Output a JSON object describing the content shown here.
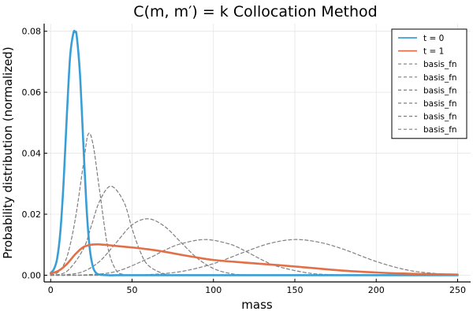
{
  "chart_data": {
    "type": "line",
    "title": "C(m, m′) = k Collocation Method",
    "xlabel": "mass",
    "ylabel": "Probability distribution (normalized)",
    "xlim": [
      -4,
      258
    ],
    "ylim": [
      -0.0022,
      0.0825
    ],
    "x_ticks": [
      0,
      50,
      100,
      150,
      200,
      250
    ],
    "y_ticks": [
      0.0,
      0.02,
      0.04,
      0.06,
      0.08
    ],
    "y_tick_labels": [
      "0.00",
      "0.02",
      "0.04",
      "0.06",
      "0.08"
    ],
    "grid": true,
    "legend_position": "top-right",
    "series": [
      {
        "name": "t = 0",
        "color": "#389fd6",
        "style": "solid",
        "x": [
          0,
          2,
          4,
          6,
          8,
          10,
          12,
          14,
          15,
          16,
          18,
          20,
          22,
          24,
          26,
          28,
          30,
          35,
          40,
          50,
          60,
          100,
          150,
          200,
          250
        ],
        "values": [
          0.0007,
          0.002,
          0.0055,
          0.0145,
          0.031,
          0.053,
          0.072,
          0.0795,
          0.0797,
          0.0785,
          0.066,
          0.044,
          0.0225,
          0.0088,
          0.0027,
          0.0007,
          0.0002,
          0.0,
          0.0,
          0.0,
          0.0,
          0.0,
          0.0,
          0.0,
          0.0
        ]
      },
      {
        "name": "t = 1",
        "color": "#e26f46",
        "style": "solid",
        "x": [
          0,
          5,
          10,
          15,
          20,
          25,
          30,
          35,
          40,
          50,
          60,
          70,
          80,
          90,
          100,
          120,
          140,
          160,
          180,
          200,
          220,
          240,
          250
        ],
        "values": [
          0.0005,
          0.0015,
          0.0037,
          0.0068,
          0.0092,
          0.01,
          0.0101,
          0.0099,
          0.0096,
          0.0091,
          0.0085,
          0.0077,
          0.0067,
          0.0058,
          0.005,
          0.0041,
          0.0033,
          0.0024,
          0.0015,
          0.0009,
          0.0005,
          0.0003,
          0.0002
        ]
      },
      {
        "name": "basis_fn",
        "color": "#7f7f7f",
        "style": "dashed",
        "x": [
          0,
          5,
          10,
          15,
          20,
          23,
          26,
          30,
          35,
          40,
          45,
          50,
          60,
          80
        ],
        "values": [
          0.0,
          0.0012,
          0.006,
          0.018,
          0.036,
          0.0462,
          0.043,
          0.028,
          0.0095,
          0.0018,
          0.0002,
          0.0,
          0.0,
          0.0
        ]
      },
      {
        "name": "basis_fn",
        "color": "#7f7f7f",
        "style": "dashed",
        "x": [
          0,
          10,
          20,
          25,
          30,
          37,
          45,
          50,
          55,
          60,
          70,
          80,
          100
        ],
        "values": [
          0.0,
          0.0013,
          0.0085,
          0.0162,
          0.0242,
          0.0292,
          0.024,
          0.0153,
          0.0078,
          0.0032,
          0.0004,
          0.0,
          0.0
        ]
      },
      {
        "name": "basis_fn",
        "color": "#7f7f7f",
        "style": "dashed",
        "x": [
          0,
          10,
          20,
          30,
          40,
          50,
          60,
          70,
          80,
          90,
          100,
          110,
          120,
          140
        ],
        "values": [
          0.0,
          0.0002,
          0.0012,
          0.0045,
          0.0105,
          0.0165,
          0.0185,
          0.016,
          0.0108,
          0.0056,
          0.0022,
          0.0006,
          0.0001,
          0.0
        ]
      },
      {
        "name": "basis_fn",
        "color": "#7f7f7f",
        "style": "dashed",
        "x": [
          0,
          20,
          40,
          60,
          70,
          80,
          95,
          110,
          120,
          130,
          140,
          160,
          180,
          200
        ],
        "values": [
          0.0,
          0.0001,
          0.0012,
          0.0055,
          0.0082,
          0.0103,
          0.0117,
          0.0102,
          0.0078,
          0.005,
          0.0028,
          0.0006,
          0.0001,
          0.0
        ]
      },
      {
        "name": "basis_fn",
        "color": "#7f7f7f",
        "style": "dashed",
        "x": [
          0,
          40,
          60,
          80,
          100,
          120,
          135,
          150,
          165,
          180,
          200,
          220,
          240,
          250
        ],
        "values": [
          0.0,
          0.0,
          0.0002,
          0.0012,
          0.0038,
          0.0078,
          0.0105,
          0.0117,
          0.0108,
          0.0085,
          0.0045,
          0.0016,
          0.0004,
          0.0002
        ]
      },
      {
        "name": "basis_fn",
        "color": "#7f7f7f",
        "style": "dashed",
        "x": [
          0,
          20,
          40,
          60,
          80,
          100,
          150,
          200,
          250
        ],
        "values": [
          0.0,
          0.0,
          0.0,
          0.0,
          0.0,
          0.0,
          0.0,
          0.0,
          0.0
        ]
      }
    ]
  }
}
